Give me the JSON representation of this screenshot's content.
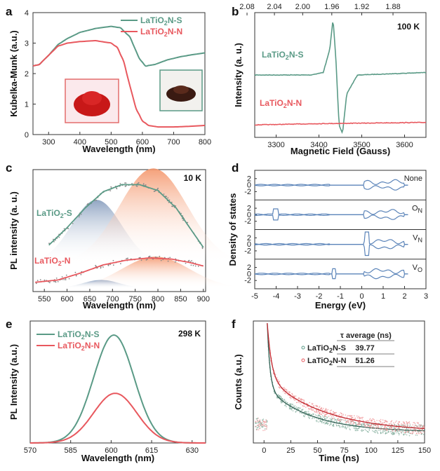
{
  "colors": {
    "S": "#5a9a86",
    "N": "#e8585e",
    "dos": "#5b84b9"
  },
  "chart_data": [
    {
      "panel": "a",
      "type": "line",
      "xlabel": "Wavelength (nm)",
      "ylabel": "Kubelka-Munk (a.u.)",
      "xlim": [
        250,
        800
      ],
      "ylim": [
        0,
        4
      ],
      "xticks": [
        {
          "v": 300,
          "t": "300"
        },
        {
          "v": 400,
          "t": "400"
        },
        {
          "v": 500,
          "t": "500"
        },
        {
          "v": 600,
          "t": "600"
        },
        {
          "v": 700,
          "t": "700"
        },
        {
          "v": 800,
          "t": "800"
        }
      ],
      "yticks": [
        {
          "v": 0,
          "t": "0"
        },
        {
          "v": 1,
          "t": "1"
        },
        {
          "v": 2,
          "t": "2"
        },
        {
          "v": 3,
          "t": "3"
        },
        {
          "v": 4,
          "t": "4"
        }
      ],
      "legend": [
        "LaTiO₂N-S",
        "LaTiO₂N-N"
      ],
      "series": [
        {
          "key": "S",
          "name": "LaTiO₂N-S",
          "x": [
            250,
            270,
            300,
            330,
            360,
            400,
            450,
            500,
            530,
            560,
            590,
            610,
            640,
            680,
            720,
            760,
            800
          ],
          "y": [
            2.25,
            2.3,
            2.6,
            2.95,
            3.15,
            3.35,
            3.48,
            3.55,
            3.5,
            3.2,
            2.5,
            2.25,
            2.3,
            2.45,
            2.55,
            2.62,
            2.68
          ]
        },
        {
          "key": "N",
          "name": "LaTiO₂N-N",
          "x": [
            250,
            270,
            300,
            330,
            360,
            400,
            450,
            500,
            520,
            540,
            560,
            580,
            600,
            620,
            650,
            700,
            750,
            800
          ],
          "y": [
            2.25,
            2.3,
            2.6,
            2.9,
            3.0,
            3.05,
            3.08,
            3.0,
            2.85,
            2.4,
            1.6,
            0.85,
            0.45,
            0.3,
            0.25,
            0.25,
            0.27,
            0.3
          ]
        }
      ]
    },
    {
      "panel": "b",
      "type": "line",
      "xlabel": "Magnetic Field (Gauss)",
      "ylabel": "Intensity (a. u.)",
      "note": "100 K",
      "xlim": [
        3250,
        3650
      ],
      "xticks": [
        {
          "v": 3300,
          "t": "3300"
        },
        {
          "v": 3400,
          "t": "3400"
        },
        {
          "v": 3500,
          "t": "3500"
        },
        {
          "v": 3600,
          "t": "3600"
        }
      ],
      "top_ticks": [
        {
          "v": 3232,
          "t": "2.08"
        },
        {
          "v": 3296,
          "t": "2.04"
        },
        {
          "v": 3362,
          "t": "2.00"
        },
        {
          "v": 3430,
          "t": "1.96"
        },
        {
          "v": 3500,
          "t": "1.92"
        },
        {
          "v": 3573,
          "t": "1.88"
        }
      ],
      "series": [
        {
          "key": "S",
          "name": "LaTiO₂N-S",
          "x": [
            3250,
            3380,
            3410,
            3425,
            3433,
            3440,
            3447,
            3455,
            3465,
            3490,
            3650
          ],
          "y": [
            0.5,
            0.5,
            0.52,
            0.7,
            0.95,
            0.6,
            0.1,
            0.03,
            0.35,
            0.5,
            0.52
          ]
        },
        {
          "key": "N",
          "name": "LaTiO₂N-N",
          "x": [
            3250,
            3400,
            3650
          ],
          "y": [
            0.1,
            0.11,
            0.12
          ]
        }
      ]
    },
    {
      "panel": "c",
      "type": "line",
      "xlabel": "Wavelength (nm)",
      "ylabel": "PL intensity (a. u.)",
      "note": "10 K",
      "xlim": [
        525,
        905
      ],
      "xticks": [
        {
          "v": 550,
          "t": "550"
        },
        {
          "v": 600,
          "t": "600"
        },
        {
          "v": 650,
          "t": "650"
        },
        {
          "v": 700,
          "t": "700"
        },
        {
          "v": 750,
          "t": "750"
        },
        {
          "v": 800,
          "t": "800"
        },
        {
          "v": 850,
          "t": "850"
        },
        {
          "v": 900,
          "t": "900"
        }
      ],
      "labels": [
        "LaTiO₂-S",
        "LaTiO₂-N"
      ],
      "series": [
        {
          "key": "S",
          "name": "LaTiO₂-S",
          "x": [
            560,
            600,
            640,
            680,
            720,
            760,
            800,
            840,
            870,
            900
          ],
          "y": [
            0.4,
            0.55,
            0.72,
            0.86,
            0.92,
            0.92,
            0.87,
            0.72,
            0.55,
            0.38
          ]
        },
        {
          "key": "N",
          "name": "LaTiO₂-N",
          "x": [
            530,
            580,
            630,
            680,
            730,
            780,
            830,
            870,
            900
          ],
          "y": [
            0.08,
            0.1,
            0.16,
            0.23,
            0.27,
            0.29,
            0.28,
            0.25,
            0.22
          ]
        }
      ],
      "bands": [
        {
          "key": "S-hi",
          "center": 665,
          "width": 55,
          "height": 0.55,
          "base": 0.24
        },
        {
          "key": "S-lo",
          "center": 790,
          "width": 75,
          "height": 0.82,
          "base": 0.24
        },
        {
          "key": "N-hi",
          "center": 675,
          "width": 40,
          "height": 0.07,
          "base": 0.03
        },
        {
          "key": "N-lo",
          "center": 795,
          "width": 75,
          "height": 0.27,
          "base": 0.03
        }
      ]
    },
    {
      "panel": "d",
      "type": "line",
      "xlabel": "Energy (eV)",
      "ylabel": "Density of states",
      "xlim": [
        -5,
        3
      ],
      "xticks": [
        {
          "v": -5,
          "t": "-5"
        },
        {
          "v": -4,
          "t": "-4"
        },
        {
          "v": -3,
          "t": "-3"
        },
        {
          "v": -2,
          "t": "-2"
        },
        {
          "v": -1,
          "t": "-1"
        },
        {
          "v": 0,
          "t": "0"
        },
        {
          "v": 1,
          "t": "1"
        },
        {
          "v": 2,
          "t": "2"
        },
        {
          "v": 3,
          "t": "3"
        }
      ],
      "rows": [
        {
          "label": "None",
          "sub": ""
        },
        {
          "label": "O",
          "sub": "N"
        },
        {
          "label": "V",
          "sub": "N"
        },
        {
          "label": "V",
          "sub": "O"
        }
      ]
    },
    {
      "panel": "e",
      "type": "line",
      "xlabel": "Wavelength (nm)",
      "ylabel": "PL Intensity (a.u.)",
      "note": "298 K",
      "xlim": [
        570,
        635
      ],
      "xticks": [
        {
          "v": 570,
          "t": "570"
        },
        {
          "v": 585,
          "t": "585"
        },
        {
          "v": 600,
          "t": "600"
        },
        {
          "v": 615,
          "t": "615"
        },
        {
          "v": 630,
          "t": "630"
        }
      ],
      "legend": [
        "LaTiO₂N-S",
        "LaTiO₂N-N"
      ],
      "series": [
        {
          "key": "S",
          "name": "LaTiO₂N-S",
          "center": 601,
          "width": 7.5,
          "height": 1.0
        },
        {
          "key": "N",
          "name": "LaTiO₂N-N",
          "center": 601.5,
          "width": 8,
          "height": 0.46
        }
      ]
    },
    {
      "panel": "f",
      "type": "line",
      "xlabel": "Time (ns)",
      "ylabel": "Counts (a.u.)",
      "xlim": [
        -10,
        150
      ],
      "xticks": [
        {
          "v": 0,
          "t": "0"
        },
        {
          "v": 25,
          "t": "25"
        },
        {
          "v": 50,
          "t": "50"
        },
        {
          "v": 75,
          "t": "75"
        },
        {
          "v": 100,
          "t": "100"
        },
        {
          "v": 125,
          "t": "125"
        },
        {
          "v": 150,
          "t": "150"
        }
      ],
      "table_header": "τ average (ns)",
      "table": [
        {
          "name": "LaTiO₂N-S",
          "value": "39.77",
          "key": "S"
        },
        {
          "name": "LaTiO₂N-N",
          "value": "51.26",
          "key": "N"
        }
      ],
      "series": [
        {
          "key": "S",
          "name": "LaTiO₂N-S",
          "tau": 39.77
        },
        {
          "key": "N",
          "name": "LaTiO₂N-N",
          "tau": 51.26
        }
      ]
    }
  ]
}
